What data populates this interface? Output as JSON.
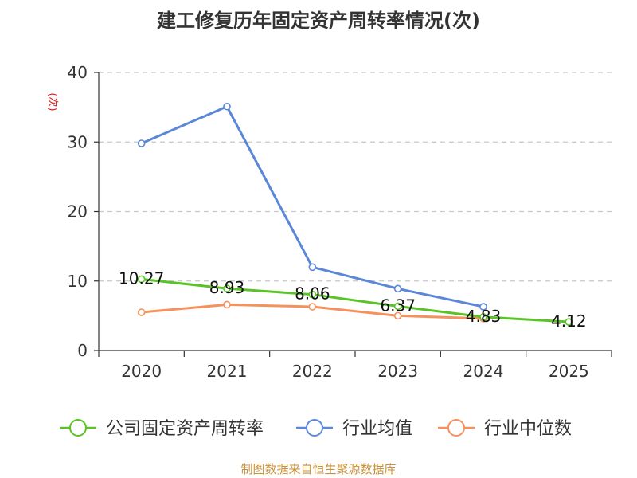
{
  "chart_data": {
    "type": "line",
    "title": "建工修复历年固定资产周转率情况(次)",
    "ylabel": "(次)",
    "categories": [
      "2020",
      "2021",
      "2022",
      "2023",
      "2024",
      "2025"
    ],
    "ylim": [
      0,
      40
    ],
    "yticks": [
      0,
      10,
      20,
      30,
      40
    ],
    "grid": "horizontal-dashed",
    "legend_position": "bottom",
    "series": [
      {
        "name": "公司固定资产周转率",
        "color": "#5ac427",
        "values": [
          10.27,
          8.93,
          8.06,
          6.37,
          4.83,
          4.12
        ],
        "labels": [
          "10.27",
          "8.93",
          "8.06",
          "6.37",
          "4.83",
          "4.12"
        ]
      },
      {
        "name": "行业均值",
        "color": "#5b87d8",
        "values": [
          29.8,
          35.1,
          12.0,
          8.9,
          6.3,
          null
        ]
      },
      {
        "name": "行业中位数",
        "color": "#f5915c",
        "values": [
          5.5,
          6.6,
          6.3,
          5.0,
          4.6,
          null
        ]
      }
    ]
  },
  "source": "制图数据来自恒生聚源数据库"
}
